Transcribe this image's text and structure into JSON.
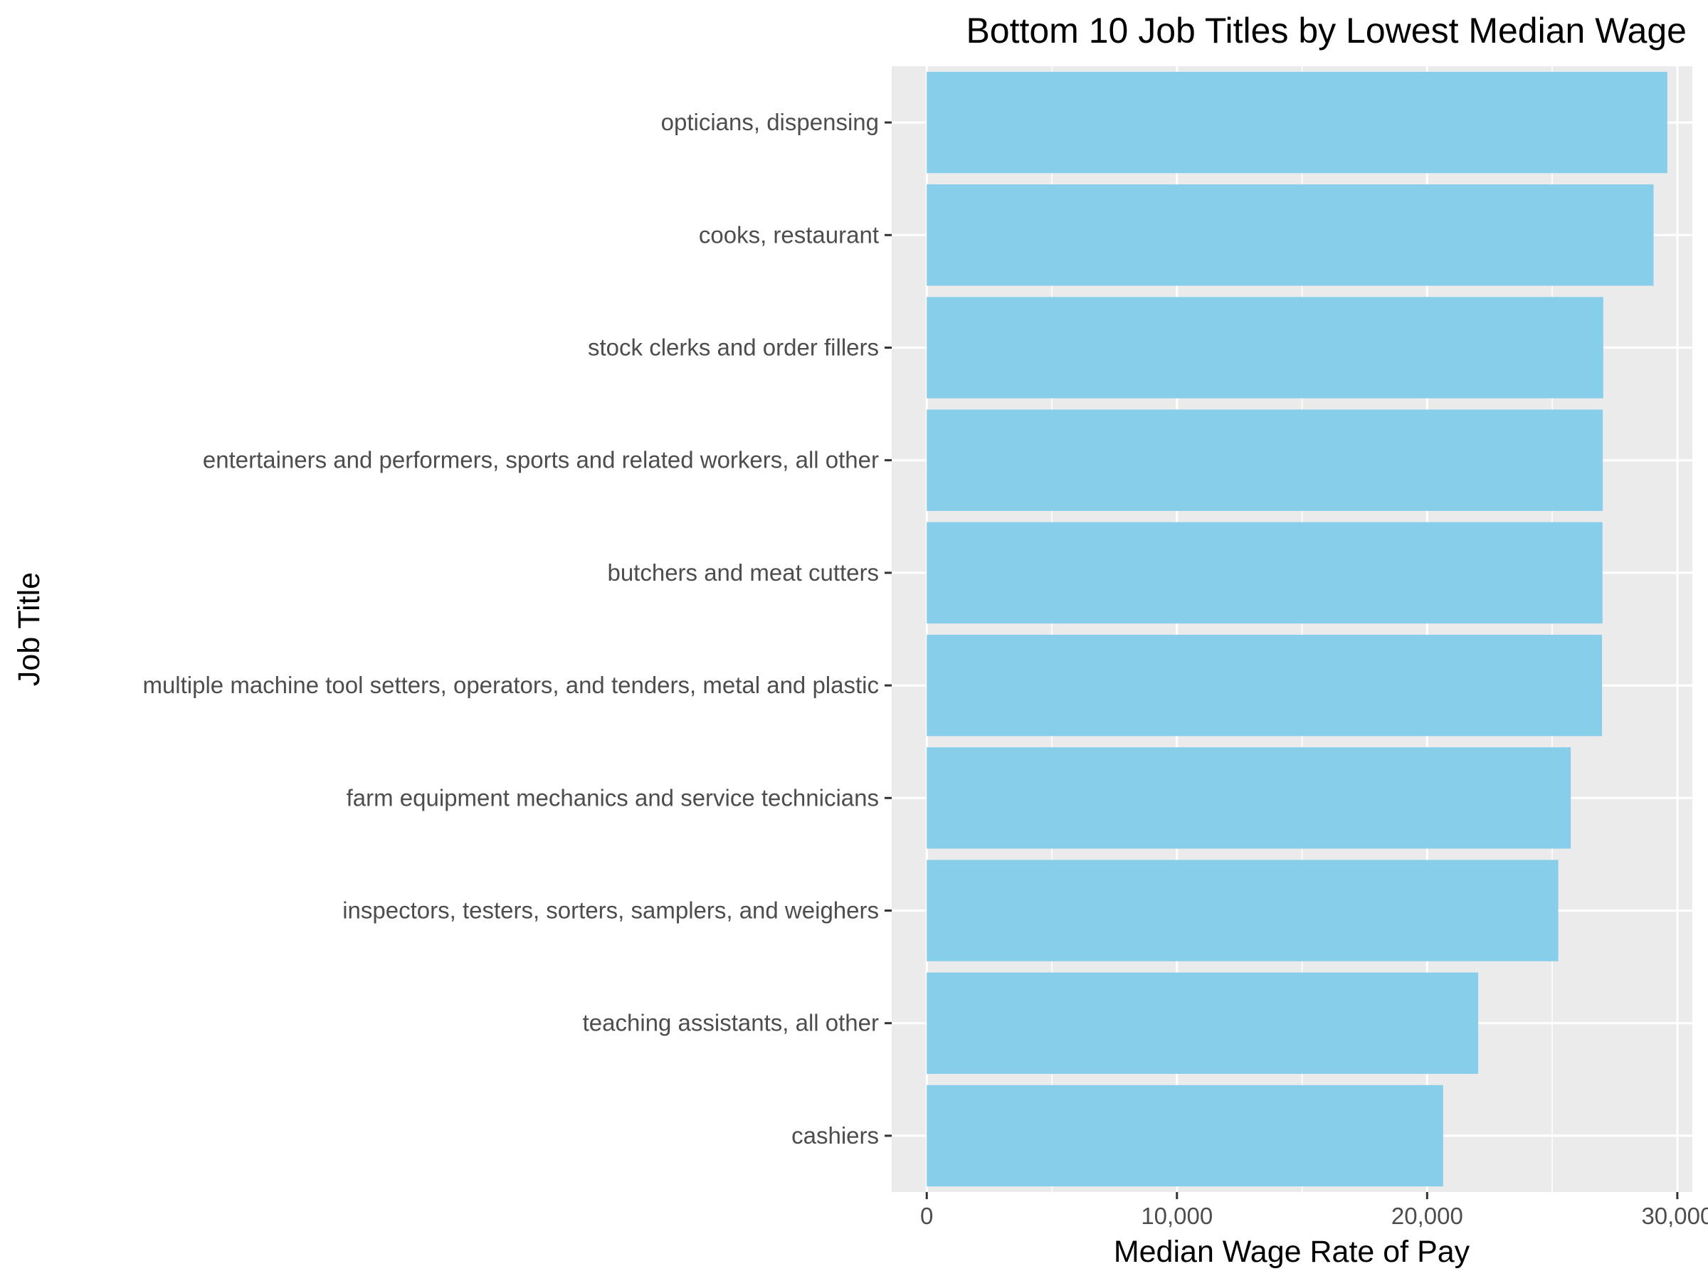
{
  "chart_data": {
    "type": "bar",
    "orientation": "horizontal",
    "title": "Bottom 10 Job Titles by Lowest Median Wage",
    "xlabel": "Median Wage Rate of Pay",
    "ylabel": "Job Title",
    "categories": [
      "opticians, dispensing",
      "cooks, restaurant",
      "stock clerks and order fillers",
      "entertainers and performers, sports and related workers, all other",
      "butchers and meat cutters",
      "multiple machine tool setters, operators, and tenders, metal and plastic",
      "farm equipment mechanics and service technicians",
      "inspectors, testers, sorters, samplers, and weighers",
      "teaching assistants, all other",
      "cashiers"
    ],
    "values": [
      29600,
      29050,
      27040,
      27020,
      27010,
      26990,
      25740,
      25240,
      22040,
      20640
    ],
    "xlim": [
      -1400,
      30600
    ],
    "xticks": [
      0,
      10000,
      20000,
      30000
    ],
    "xtick_labels": [
      "0",
      "10,000",
      "20,000",
      "30,000"
    ],
    "grid": true,
    "bar_color": "#87CEEB",
    "panel_color": "#EBEBEB",
    "grid_color": "#FFFFFF"
  }
}
